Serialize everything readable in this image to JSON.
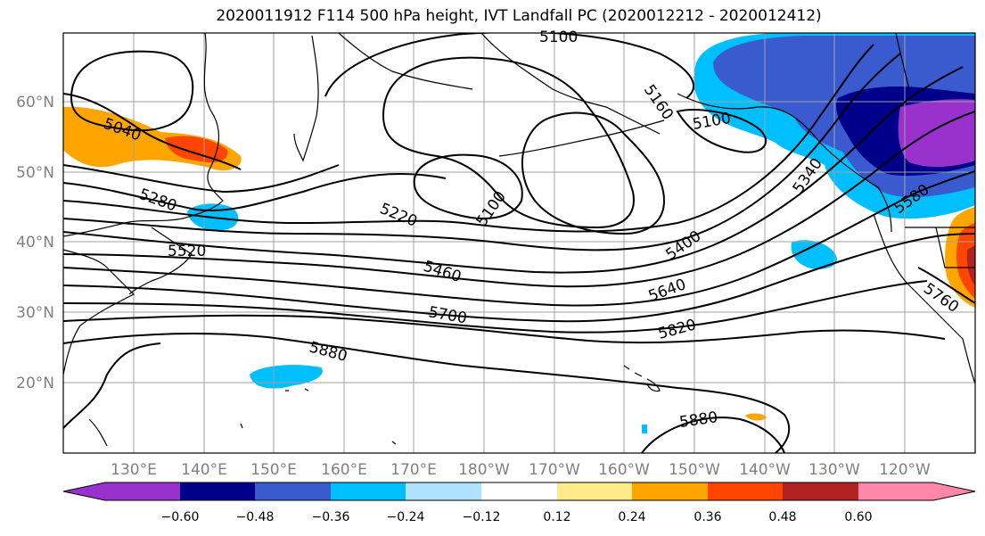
{
  "title": "2020011912 F114 500 hPa height, IVT Landfall PC (2020012212 - 2020012412)",
  "map": {
    "lat_ticks": [
      "60°N",
      "50°N",
      "40°N",
      "30°N",
      "20°N"
    ],
    "lon_ticks": [
      "130°E",
      "140°E",
      "150°E",
      "160°E",
      "170°E",
      "180°W",
      "170°W",
      "160°W",
      "150°W",
      "140°W",
      "130°W",
      "120°W"
    ],
    "contour_labels": [
      "5100",
      "5040",
      "5160",
      "5100",
      "5280",
      "5220",
      "5100",
      "5340",
      "5520",
      "5400",
      "5580",
      "5460",
      "5640",
      "5700",
      "5760",
      "5820",
      "5880",
      "5880"
    ],
    "line_color": "#000000",
    "grid_color": "#a0a0a0"
  },
  "colorbar": {
    "colors": [
      "#9932CC",
      "#00008B",
      "#3A5BCF",
      "#00BFFF",
      "#B0E2FF",
      "#FFFFFF",
      "#FFEB8A",
      "#FFA500",
      "#FF4500",
      "#B22222",
      "#FF88AA"
    ],
    "ticks": [
      "−0.60",
      "−0.48",
      "−0.36",
      "−0.24",
      "−0.12",
      "0.12",
      "0.24",
      "0.36",
      "0.48",
      "0.60"
    ]
  }
}
